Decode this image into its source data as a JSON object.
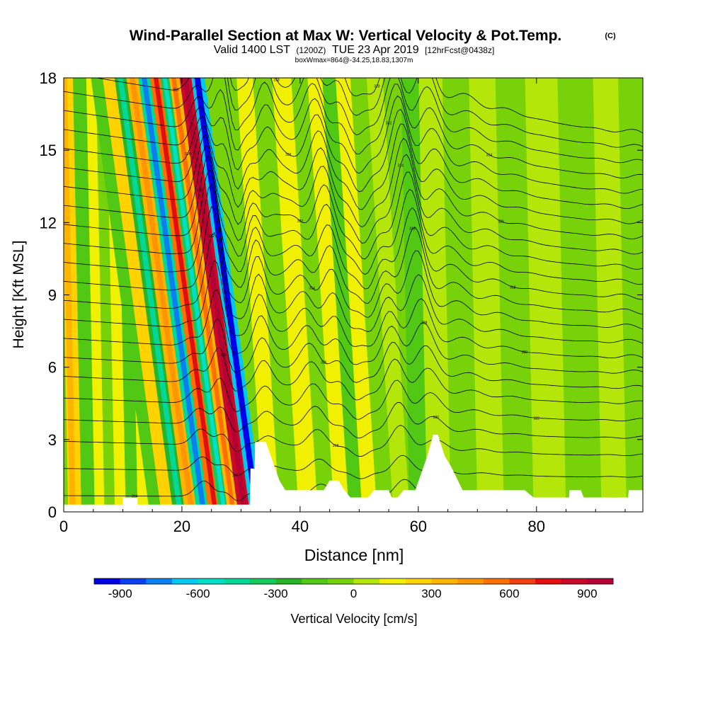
{
  "chart_data": {
    "type": "heatmap",
    "title": "Wind-Parallel Section at Max W: Vertical Velocity & Pot.Temp.",
    "copyright": "(C)",
    "subtitle": {
      "valid_prefix": "Valid 1400 LST",
      "utc": "(1200Z)",
      "date": "TUE 23 Apr 2019",
      "forecast": "[12hrFcst@0438z]"
    },
    "box_info": "boxWmax=864@-34.25,18.83,1307m",
    "xlabel": "Distance [nm]",
    "ylabel": "Height [Kft MSL]",
    "xlim": [
      0,
      98
    ],
    "ylim": [
      0,
      18
    ],
    "x_ticks": [
      "0",
      "20",
      "40",
      "60",
      "80"
    ],
    "x_tick_values": [
      0,
      20,
      40,
      60,
      80
    ],
    "y_ticks": [
      "0",
      "3",
      "6",
      "9",
      "12",
      "15",
      "18"
    ],
    "y_tick_values": [
      0,
      3,
      6,
      9,
      12,
      15,
      18
    ],
    "colorbar": {
      "label": "Vertical Velocity [cm/s]",
      "tick_labels": [
        "-900",
        "-600",
        "-300",
        "0",
        "300",
        "600",
        "900"
      ],
      "tick_values": [
        -900,
        -600,
        -300,
        0,
        300,
        600,
        900
      ],
      "range": [
        -1000,
        1000
      ],
      "colors": [
        "#0000e8",
        "#0a40f0",
        "#0a80f0",
        "#00c8f0",
        "#00e0c8",
        "#00d89a",
        "#14c85a",
        "#28b428",
        "#50c814",
        "#78d20a",
        "#b4e60a",
        "#f0f000",
        "#ffd200",
        "#ffb400",
        "#ff9600",
        "#ff7000",
        "#f04010",
        "#e01010",
        "#c80a28",
        "#b40032"
      ]
    },
    "vertical_velocity_bands": [
      {
        "x": 1.5,
        "w": 260
      },
      {
        "x": 4.5,
        "w": -150
      },
      {
        "x": 6.0,
        "w": 150
      },
      {
        "x": 7.8,
        "w": -100
      },
      {
        "x": 9.5,
        "w": 120
      },
      {
        "x": 11.5,
        "w": -180
      },
      {
        "x": 13.5,
        "w": 180
      },
      {
        "x": 15.5,
        "w": -200
      },
      {
        "x": 17.5,
        "w": 220
      },
      {
        "x": 19.5,
        "w": -280
      },
      {
        "x": 21.5,
        "w": 320
      },
      {
        "x": 23.5,
        "w": -480
      },
      {
        "x": 25.5,
        "w": 520
      },
      {
        "x": 27.0,
        "w": -380
      },
      {
        "x": 28.5,
        "w": 360
      },
      {
        "x": 30.5,
        "w": 864
      },
      {
        "x": 32.5,
        "w": -650
      },
      {
        "x": 35.0,
        "w": 150
      },
      {
        "x": 38.0,
        "w": -100
      },
      {
        "x": 41.5,
        "w": 120
      },
      {
        "x": 44.5,
        "w": -80
      },
      {
        "x": 47.0,
        "w": 120
      },
      {
        "x": 49.5,
        "w": -150
      },
      {
        "x": 51.5,
        "w": 100
      },
      {
        "x": 54.5,
        "w": -100
      },
      {
        "x": 57.0,
        "w": 80
      },
      {
        "x": 60.0,
        "w": -150
      },
      {
        "x": 63.0,
        "w": 60
      },
      {
        "x": 68.0,
        "w": -60
      },
      {
        "x": 72.0,
        "w": 60
      },
      {
        "x": 77.0,
        "w": -60
      },
      {
        "x": 82.0,
        "w": 60
      },
      {
        "x": 88.0,
        "w": -50
      },
      {
        "x": 94.0,
        "w": 50
      }
    ],
    "terrain_profile": [
      {
        "x": 0,
        "h": 0.3
      },
      {
        "x": 10,
        "h": 0.3
      },
      {
        "x": 10,
        "h": 0.6
      },
      {
        "x": 12.5,
        "h": 0.6
      },
      {
        "x": 12.5,
        "h": 0.3
      },
      {
        "x": 31.5,
        "h": 0.3
      },
      {
        "x": 31.6,
        "h": 1.8
      },
      {
        "x": 32.3,
        "h": 1.8
      },
      {
        "x": 32.4,
        "h": 2.9
      },
      {
        "x": 34.2,
        "h": 2.9
      },
      {
        "x": 35.5,
        "h": 2.0
      },
      {
        "x": 36.5,
        "h": 1.3
      },
      {
        "x": 37.5,
        "h": 0.9
      },
      {
        "x": 44,
        "h": 0.9
      },
      {
        "x": 45,
        "h": 1.3
      },
      {
        "x": 46.5,
        "h": 1.3
      },
      {
        "x": 47.5,
        "h": 0.9
      },
      {
        "x": 48.5,
        "h": 0.6
      },
      {
        "x": 51.5,
        "h": 0.6
      },
      {
        "x": 52.5,
        "h": 0.9
      },
      {
        "x": 55,
        "h": 0.9
      },
      {
        "x": 55.5,
        "h": 0.6
      },
      {
        "x": 56.5,
        "h": 0.6
      },
      {
        "x": 57.5,
        "h": 0.9
      },
      {
        "x": 59.5,
        "h": 0.9
      },
      {
        "x": 60.5,
        "h": 1.6
      },
      {
        "x": 61.5,
        "h": 2.3
      },
      {
        "x": 62.5,
        "h": 3.2
      },
      {
        "x": 63.3,
        "h": 3.2
      },
      {
        "x": 64.5,
        "h": 2.3
      },
      {
        "x": 65.5,
        "h": 1.9
      },
      {
        "x": 66.5,
        "h": 1.4
      },
      {
        "x": 67.5,
        "h": 0.9
      },
      {
        "x": 78,
        "h": 0.9
      },
      {
        "x": 79.5,
        "h": 0.6
      },
      {
        "x": 85.5,
        "h": 0.6
      },
      {
        "x": 85.6,
        "h": 0.9
      },
      {
        "x": 87.5,
        "h": 0.9
      },
      {
        "x": 88,
        "h": 0.6
      },
      {
        "x": 95.5,
        "h": 0.6
      },
      {
        "x": 95.6,
        "h": 0.9
      },
      {
        "x": 98,
        "h": 0.9
      }
    ],
    "theta_contours": {
      "base_heights": [
        0.6,
        1.6,
        2.6,
        3.4,
        4.2,
        5.0,
        5.7,
        6.4,
        7.1,
        7.8,
        8.5,
        9.2,
        9.9,
        10.6,
        11.3,
        12.0,
        12.7,
        13.4,
        14.1,
        14.8,
        15.5,
        16.2,
        16.9,
        17.6
      ],
      "slope_kft_per_nm": -0.045,
      "wave_amplitude_kft": [
        4.5,
        3.2,
        0.8
      ],
      "wave_spread_nm": [
        3.2,
        5.5,
        18
      ],
      "wave_centers_nm": [
        [
          25.5,
          30.0,
          31.8
        ],
        [
          45,
          50,
          57
        ],
        [
          68,
          85,
          98
        ]
      ],
      "contour_labels": [
        "314",
        "316",
        "318",
        "320",
        "322",
        "324",
        "326",
        "328",
        "330",
        "332"
      ]
    }
  }
}
